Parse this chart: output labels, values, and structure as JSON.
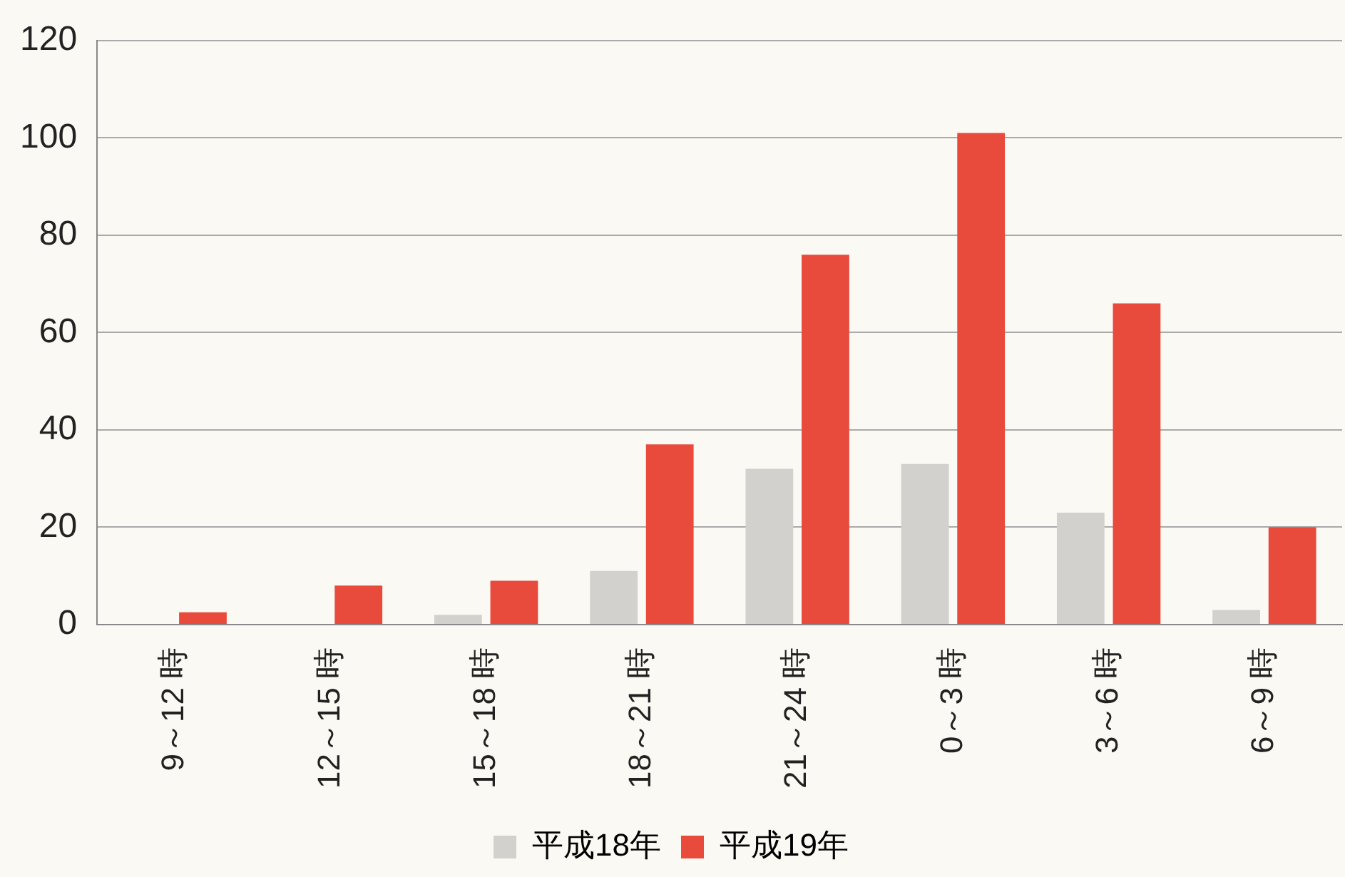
{
  "chart_data": {
    "type": "bar",
    "categories": [
      "9～12 時",
      "12～15 時",
      "15～18 時",
      "18～21 時",
      "21～24 時",
      "0～3 時",
      "3～6 時",
      "6～9 時"
    ],
    "series": [
      {
        "name": "平成18年",
        "color": "#d3d1cd",
        "values": [
          0,
          0,
          2,
          11,
          32,
          33,
          23,
          3
        ]
      },
      {
        "name": "平成19年",
        "color": "#e84a3c",
        "values": [
          2.5,
          8,
          9,
          37,
          76,
          101,
          66,
          20
        ]
      }
    ],
    "ylim": [
      0,
      120
    ],
    "yticks": [
      0,
      20,
      40,
      60,
      80,
      100,
      120
    ],
    "grid": "y",
    "legend": "bottom"
  }
}
